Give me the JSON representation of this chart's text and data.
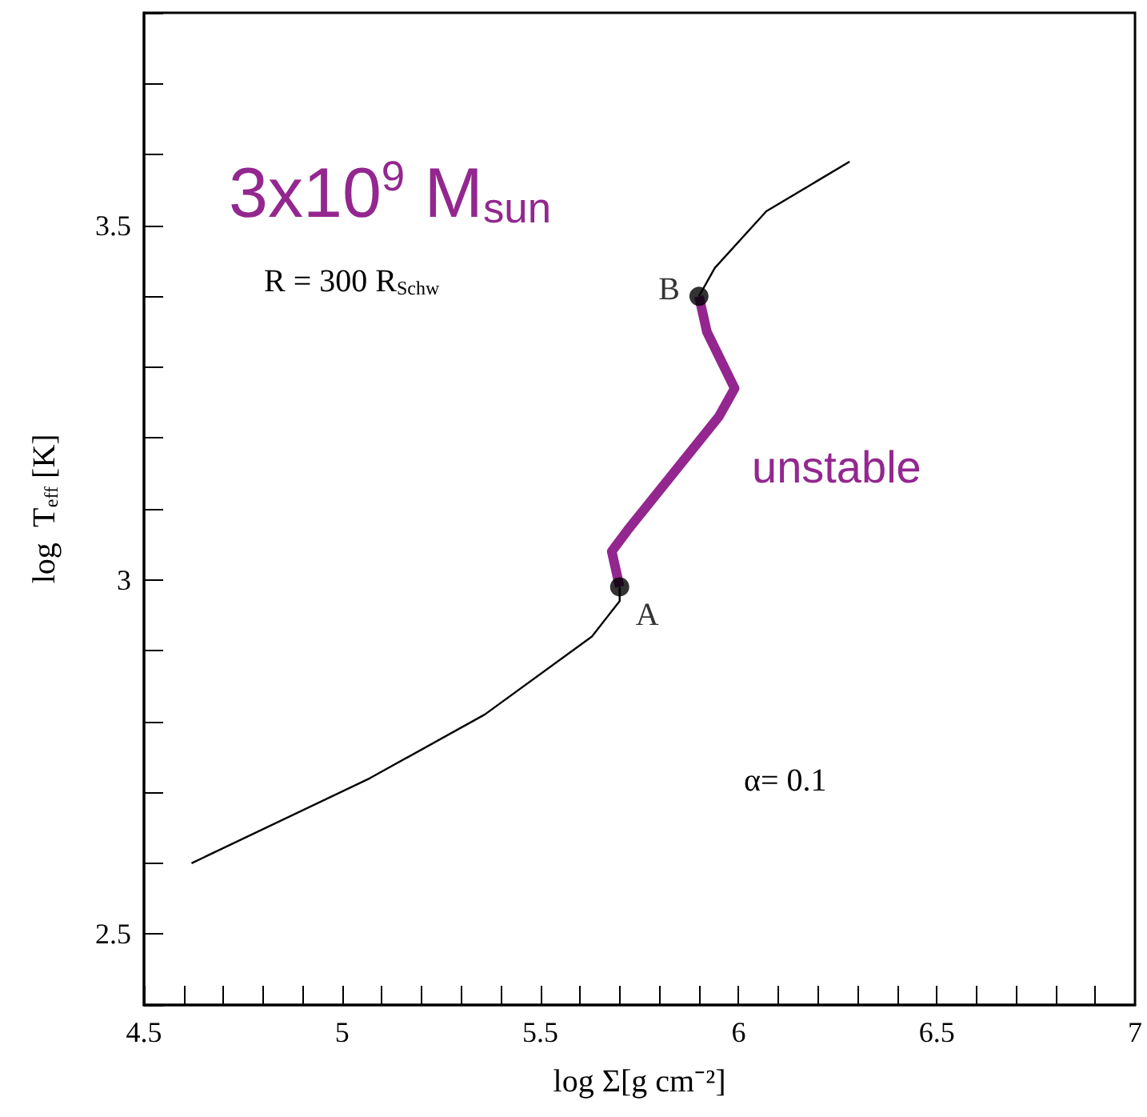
{
  "chart_data": {
    "type": "line",
    "title": "3x10$^{9}$ M$_{sun}$",
    "xlabel": "log Σ[g cm⁻²]",
    "ylabel": "log  T$_{eff}$ [K]",
    "xlim": [
      4.5,
      7
    ],
    "ylim": [
      2.4,
      3.8
    ],
    "xticks": [
      4.5,
      {
        "value": 4.6,
        "label": null
      },
      {
        "value": 4.7,
        "label": null
      },
      {
        "value": 4.8,
        "label": null
      },
      {
        "value": 4.9,
        "label": null
      },
      5,
      {
        "value": 5.1,
        "label": null
      },
      {
        "value": 5.2,
        "label": null
      },
      {
        "value": 5.3,
        "label": null
      },
      {
        "value": 5.4,
        "label": null
      },
      5.5,
      {
        "value": 5.6,
        "label": null
      },
      {
        "value": 5.7,
        "label": null
      },
      {
        "value": 5.8,
        "label": null
      },
      {
        "value": 5.9,
        "label": null
      },
      6,
      {
        "value": 6.1,
        "label": null
      },
      {
        "value": 6.2,
        "label": null
      },
      {
        "value": 6.3,
        "label": null
      },
      {
        "value": 6.4,
        "label": null
      },
      6.5,
      {
        "value": 6.6,
        "label": null
      },
      {
        "value": 6.7,
        "label": null
      },
      {
        "value": 6.8,
        "label": null
      },
      {
        "value": 6.9,
        "label": null
      },
      7
    ],
    "yticks": [
      {
        "value": 2.4,
        "label": null
      },
      2.5,
      {
        "value": 2.6,
        "label": null
      },
      {
        "value": 2.7,
        "label": null
      },
      {
        "value": 2.8,
        "label": null
      },
      {
        "value": 2.9,
        "label": null
      },
      3,
      {
        "value": 3.1,
        "label": null
      },
      {
        "value": 3.2,
        "label": null
      },
      {
        "value": 3.3,
        "label": null
      },
      {
        "value": 3.4,
        "label": null
      },
      3.5,
      {
        "value": 3.6,
        "label": null
      },
      {
        "value": 3.7,
        "label": null
      },
      {
        "value": 3.8,
        "label": null
      }
    ],
    "grid": false,
    "series": [
      {
        "color": "#000000",
        "x": [
          4.62,
          5.07,
          5.36,
          5.63,
          5.7,
          5.7
        ],
        "values": [
          2.6,
          2.72,
          2.81,
          2.92,
          2.97,
          2.99
        ]
      },
      {
        "color": "#000000",
        "x": [
          5.9,
          5.94,
          6.07,
          6.28
        ],
        "values": [
          3.4,
          3.44,
          3.52,
          3.59
        ]
      },
      {
        "color": "#93278f",
        "x": [
          5.7,
          5.68,
          5.72,
          5.95,
          5.99,
          5.92,
          5.9
        ],
        "values": [
          2.99,
          3.04,
          3.07,
          3.23,
          3.27,
          3.35,
          3.4
        ]
      },
      {
        "type": "scatter",
        "color": "#000000",
        "marker": "circle",
        "x": [
          5.7,
          5.9
        ],
        "values": [
          2.99,
          3.4
        ]
      }
    ],
    "annotations": [
      {
        "text": "A",
        "x": 5.7,
        "y": 2.99
      },
      {
        "text": "B",
        "x": 5.9,
        "y": 3.4
      },
      "R = 300 R$_{Schw}$",
      "unstable",
      "α= 0.1"
    ]
  }
}
